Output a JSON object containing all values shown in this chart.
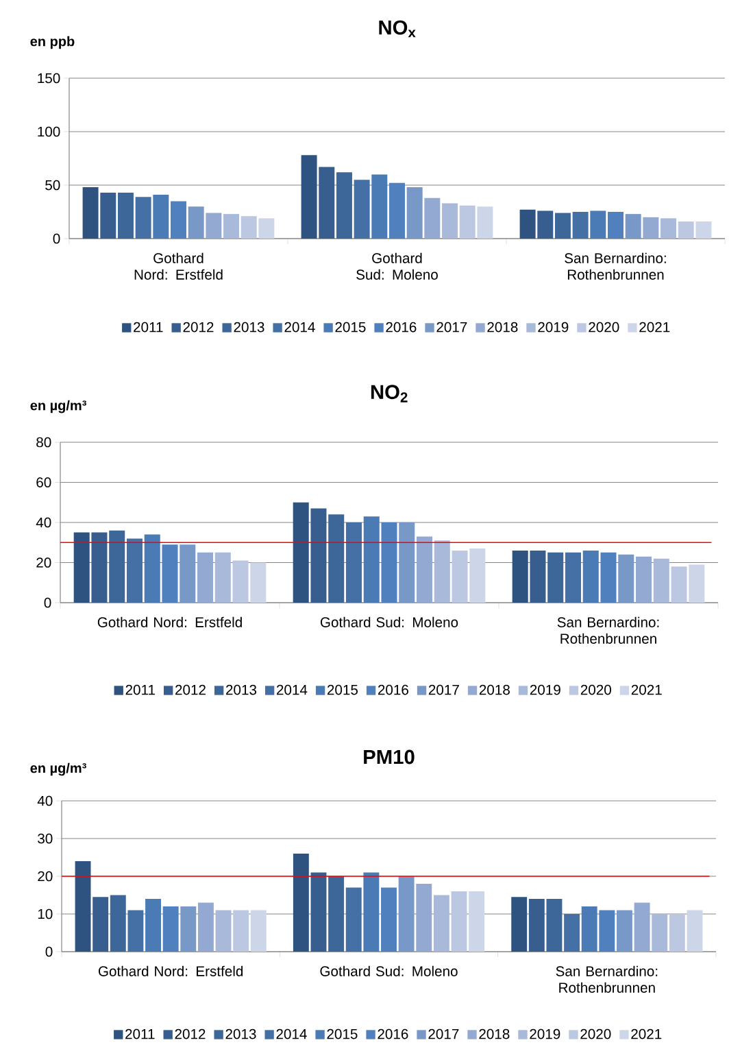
{
  "chart_data": [
    {
      "type": "bar",
      "title": "NO$_{x}$",
      "ylabel": "en ppb",
      "categories": [
        "Gothard Nord: Erstfeld",
        "Gothard Sud: Moleno",
        "San Bernardino: Rothenbrunnen"
      ],
      "series": [
        {
          "name": "2011",
          "color": "#2e5380",
          "values": [
            48,
            78,
            27
          ]
        },
        {
          "name": "2012",
          "color": "#375e8f",
          "values": [
            43,
            67,
            26
          ]
        },
        {
          "name": "2013",
          "color": "#3d6699",
          "values": [
            43,
            62,
            24
          ]
        },
        {
          "name": "2014",
          "color": "#4470a6",
          "values": [
            39,
            55,
            25
          ]
        },
        {
          "name": "2015",
          "color": "#4a7bb5",
          "values": [
            41,
            60,
            26
          ]
        },
        {
          "name": "2016",
          "color": "#5081be",
          "values": [
            35,
            52,
            25
          ]
        },
        {
          "name": "2017",
          "color": "#7898c8",
          "values": [
            30,
            48,
            23
          ]
        },
        {
          "name": "2018",
          "color": "#93a9d2",
          "values": [
            24,
            38,
            20
          ]
        },
        {
          "name": "2019",
          "color": "#a9b9da",
          "values": [
            23,
            33,
            19
          ]
        },
        {
          "name": "2020",
          "color": "#bcc8e2",
          "values": [
            21,
            31,
            16
          ]
        },
        {
          "name": "2021",
          "color": "#cdd6e8",
          "values": [
            19,
            30,
            16
          ]
        }
      ],
      "ylim": [
        0,
        150
      ],
      "yticks": [
        0,
        50,
        100,
        150
      ],
      "grid": "y",
      "legend": "bottom"
    },
    {
      "type": "bar",
      "title": "NO$_{2}$",
      "ylabel": "en µg/m³",
      "categories": [
        "Gothard Nord: Erstfeld",
        "Gothard Sud: Moleno",
        "San Bernardino: Rothenbrunnen"
      ],
      "series": [
        {
          "name": "2011",
          "color": "#2e5380",
          "values": [
            35,
            50,
            26
          ]
        },
        {
          "name": "2012",
          "color": "#375e8f",
          "values": [
            35,
            47,
            26
          ]
        },
        {
          "name": "2013",
          "color": "#3d6699",
          "values": [
            36,
            44,
            25
          ]
        },
        {
          "name": "2014",
          "color": "#4470a6",
          "values": [
            32,
            40,
            25
          ]
        },
        {
          "name": "2015",
          "color": "#4a7bb5",
          "values": [
            34,
            43,
            26
          ]
        },
        {
          "name": "2016",
          "color": "#5081be",
          "values": [
            29,
            40,
            25
          ]
        },
        {
          "name": "2017",
          "color": "#7898c8",
          "values": [
            29,
            40,
            24
          ]
        },
        {
          "name": "2018",
          "color": "#93a9d2",
          "values": [
            25,
            33,
            23
          ]
        },
        {
          "name": "2019",
          "color": "#a9b9da",
          "values": [
            25,
            31,
            22
          ]
        },
        {
          "name": "2020",
          "color": "#bcc8e2",
          "values": [
            21,
            26,
            18
          ]
        },
        {
          "name": "2021",
          "color": "#cdd6e8",
          "values": [
            20,
            27,
            19
          ]
        }
      ],
      "ylim": [
        0,
        80
      ],
      "yticks": [
        0,
        20,
        40,
        60,
        80
      ],
      "grid": "y",
      "legend": "bottom",
      "ref_lines": [
        {
          "axis": "y",
          "value": 30,
          "color": "#ff0000"
        }
      ]
    },
    {
      "type": "bar",
      "title": "PM10",
      "ylabel": "en µg/m³",
      "categories": [
        "Gothard Nord: Erstfeld",
        "Gothard Sud: Moleno",
        "San Bernardino: Rothenbrunnen"
      ],
      "series": [
        {
          "name": "2011",
          "color": "#2e5380",
          "values": [
            24,
            26,
            14.5
          ]
        },
        {
          "name": "2012",
          "color": "#375e8f",
          "values": [
            14.5,
            21,
            14
          ]
        },
        {
          "name": "2013",
          "color": "#3d6699",
          "values": [
            15,
            20,
            14
          ]
        },
        {
          "name": "2014",
          "color": "#4470a6",
          "values": [
            11,
            17,
            10
          ]
        },
        {
          "name": "2015",
          "color": "#4a7bb5",
          "values": [
            14,
            21,
            12
          ]
        },
        {
          "name": "2016",
          "color": "#5081be",
          "values": [
            12,
            17,
            11
          ]
        },
        {
          "name": "2017",
          "color": "#7898c8",
          "values": [
            12,
            20,
            11
          ]
        },
        {
          "name": "2018",
          "color": "#93a9d2",
          "values": [
            13,
            18,
            13
          ]
        },
        {
          "name": "2019",
          "color": "#a9b9da",
          "values": [
            11,
            15,
            10
          ]
        },
        {
          "name": "2020",
          "color": "#bcc8e2",
          "values": [
            11,
            16,
            10
          ]
        },
        {
          "name": "2021",
          "color": "#cdd6e8",
          "values": [
            11,
            16,
            11
          ]
        }
      ],
      "ylim": [
        0,
        40
      ],
      "yticks": [
        0,
        10,
        20,
        30,
        40
      ],
      "grid": "y",
      "legend": "bottom",
      "ref_lines": [
        {
          "axis": "y",
          "value": 20,
          "color": "#ff0000"
        }
      ]
    }
  ]
}
